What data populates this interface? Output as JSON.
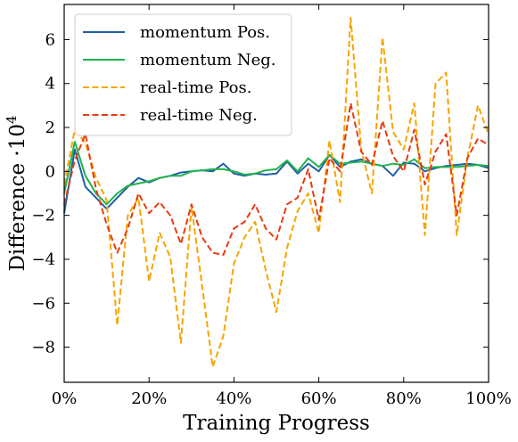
{
  "chart_data": {
    "type": "line",
    "xlabel": "Training Progress",
    "ylabel": "Difference ·10",
    "ylabel_exponent": "4",
    "xlim": [
      0,
      100
    ],
    "ylim": [
      -9.6,
      7.6
    ],
    "x_ticks": [
      0,
      20,
      40,
      60,
      80,
      100
    ],
    "x_tick_labels": [
      "0%",
      "20%",
      "40%",
      "60%",
      "80%",
      "100%"
    ],
    "y_ticks": [
      -8,
      -6,
      -4,
      -2,
      0,
      2,
      4,
      6
    ],
    "y_tick_labels": [
      "−8",
      "−6",
      "−4",
      "−2",
      "0",
      "2",
      "4",
      "6"
    ],
    "legend_position": "top-left",
    "x": [
      0,
      2.5,
      5,
      7.5,
      10,
      12.5,
      15,
      17.5,
      20,
      22.5,
      25,
      27.5,
      30,
      32.5,
      35,
      37.5,
      40,
      42.5,
      45,
      47.5,
      50,
      52.5,
      55,
      57.5,
      60,
      62.5,
      65,
      67.5,
      70,
      72.5,
      75,
      77.5,
      80,
      82.5,
      85,
      87.5,
      90,
      92.5,
      95,
      97.5,
      100
    ],
    "series": [
      {
        "name": "momentum Pos.",
        "color": "#1f5fa8",
        "dash": "solid",
        "values": [
          -1.9,
          1.0,
          -0.7,
          -1.2,
          -1.7,
          -1.2,
          -0.7,
          -0.3,
          -0.5,
          -0.3,
          -0.2,
          -0.05,
          0.0,
          0.05,
          0.0,
          0.35,
          -0.1,
          -0.2,
          -0.1,
          -0.15,
          -0.1,
          0.45,
          -0.1,
          0.35,
          0.0,
          0.75,
          0.2,
          0.45,
          0.55,
          0.35,
          0.25,
          -0.2,
          0.4,
          0.35,
          0.0,
          0.15,
          0.25,
          0.3,
          0.35,
          0.3,
          0.15
        ]
      },
      {
        "name": "momentum Neg.",
        "color": "#1fb34a",
        "dash": "solid",
        "values": [
          -1.0,
          1.35,
          -0.2,
          -1.0,
          -1.5,
          -1.0,
          -0.65,
          -0.55,
          -0.45,
          -0.3,
          -0.2,
          -0.2,
          0.0,
          0.05,
          0.1,
          0.1,
          0.0,
          -0.15,
          -0.1,
          0.05,
          0.1,
          0.5,
          0.0,
          0.6,
          0.2,
          0.75,
          0.35,
          0.4,
          0.45,
          0.35,
          0.25,
          0.35,
          0.3,
          0.55,
          0.15,
          0.2,
          0.2,
          0.2,
          0.25,
          0.3,
          0.25
        ]
      },
      {
        "name": "real-time Pos.",
        "color": "#f5a500",
        "dash": "dashed",
        "values": [
          -0.6,
          1.9,
          1.3,
          -0.3,
          -1.3,
          -7.0,
          -2.0,
          -1.2,
          -5.0,
          -2.8,
          -3.9,
          -7.8,
          -1.6,
          -5.2,
          -8.9,
          -7.5,
          -4.2,
          -3.0,
          -2.3,
          -4.5,
          -6.4,
          -3.5,
          -1.8,
          -1.0,
          -2.8,
          1.4,
          -1.4,
          7.0,
          1.0,
          -1.0,
          6.1,
          1.8,
          1.0,
          3.1,
          -2.9,
          4.0,
          4.5,
          -2.9,
          0.6,
          3.0,
          1.7
        ]
      },
      {
        "name": "real-time Neg.",
        "color": "#e83a10",
        "dash": "dashed",
        "values": [
          -1.5,
          0.5,
          1.7,
          -0.8,
          -2.4,
          -3.7,
          -2.6,
          -1.0,
          -1.9,
          -1.4,
          -2.0,
          -3.3,
          -1.5,
          -3.0,
          -3.7,
          -3.8,
          -2.6,
          -2.3,
          -1.5,
          -2.6,
          -3.1,
          -1.5,
          -1.2,
          0.1,
          -2.2,
          0.6,
          0.0,
          3.1,
          0.9,
          0.3,
          2.3,
          0.7,
          0.0,
          1.9,
          -0.6,
          0.9,
          1.7,
          -2.0,
          0.6,
          1.5,
          1.2
        ]
      }
    ]
  }
}
